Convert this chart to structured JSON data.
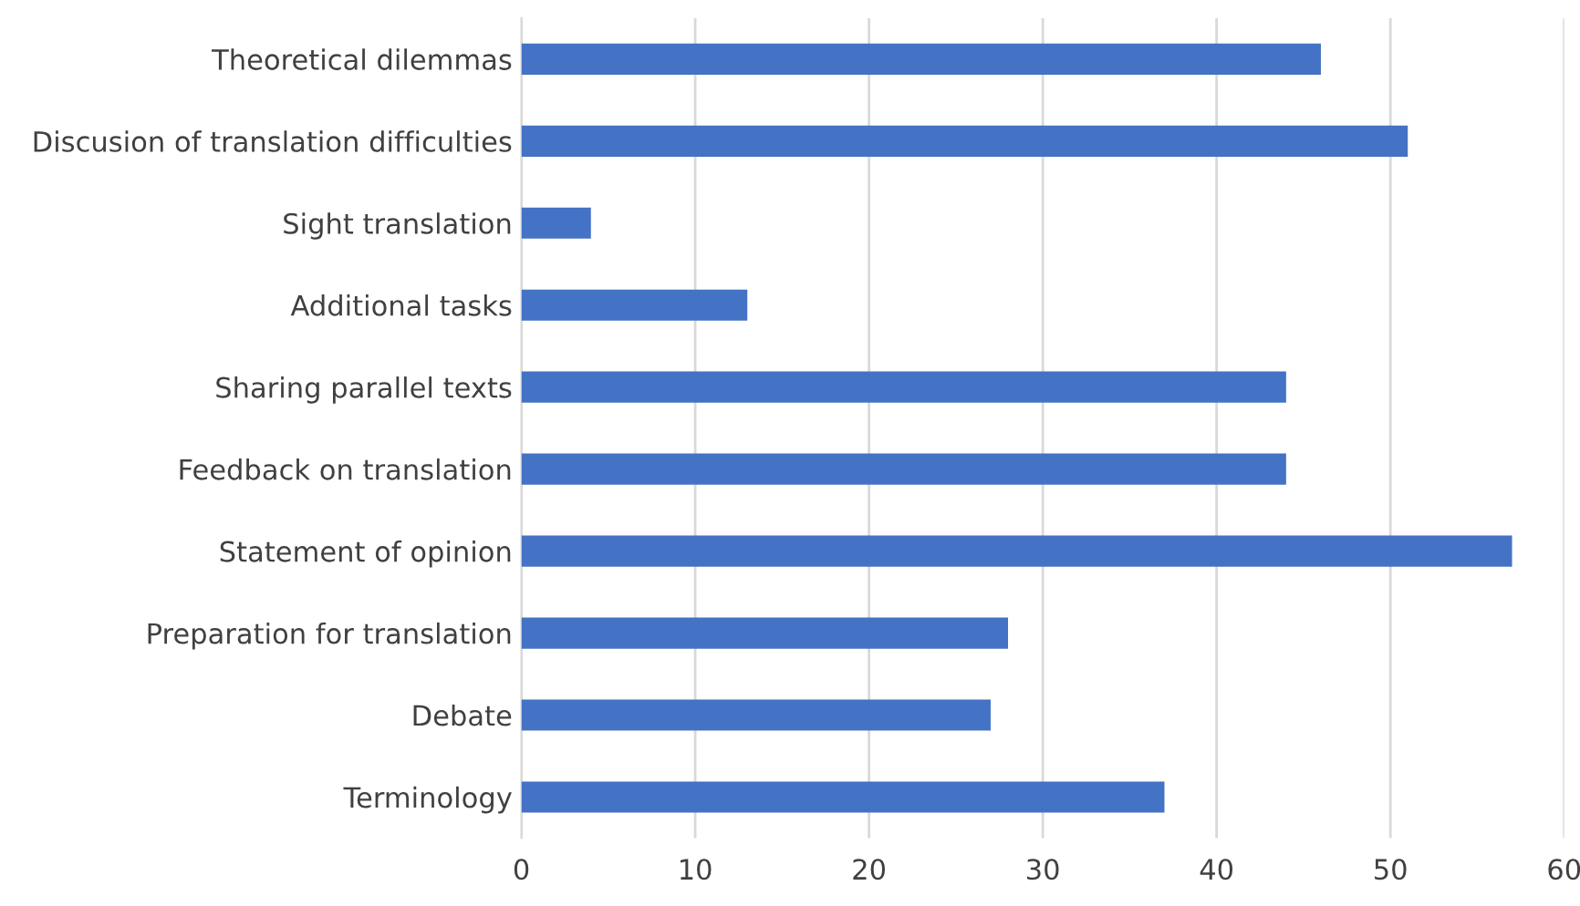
{
  "chart_data": {
    "type": "bar",
    "orientation": "horizontal",
    "categories": [
      "Theoretical dilemmas",
      "Discusion of translation difficulties",
      "Sight translation",
      "Additional tasks",
      "Sharing parallel texts",
      "Feedback on translation",
      "Statement of opinion",
      "Preparation for translation",
      "Debate",
      "Terminology"
    ],
    "values": [
      46,
      51,
      4,
      13,
      44,
      44,
      57,
      28,
      27,
      37
    ],
    "color": "#4472c4",
    "xlim": [
      0,
      60
    ],
    "xticks": [
      0,
      10,
      20,
      30,
      40,
      50,
      60
    ],
    "grid": "x",
    "legend": false
  }
}
